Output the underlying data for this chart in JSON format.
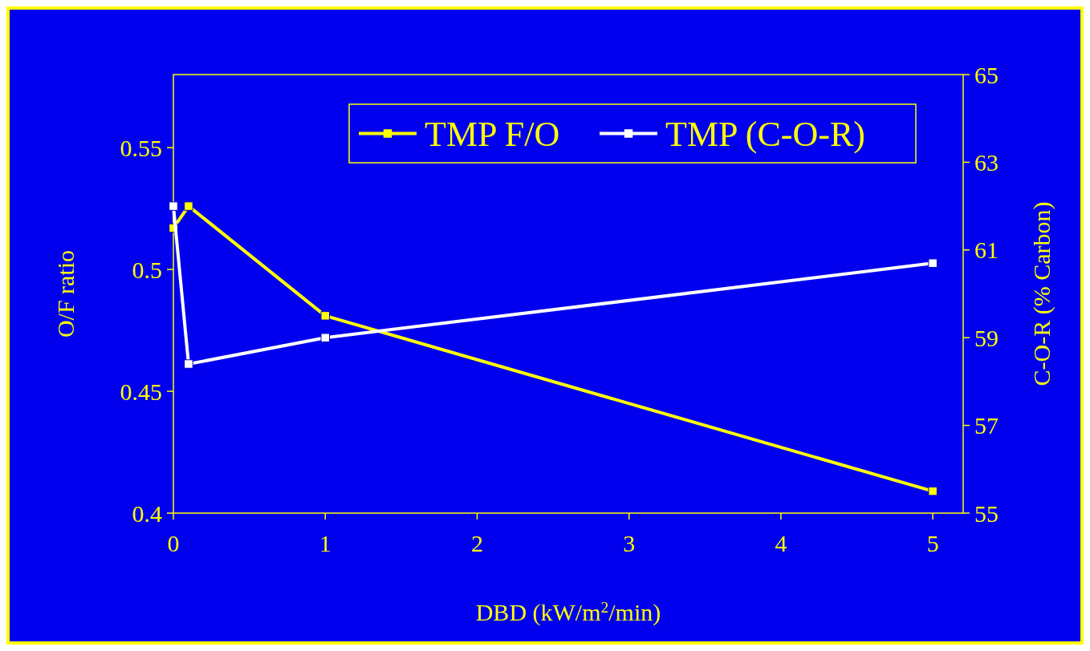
{
  "chart_data": {
    "type": "line",
    "xlabel": "DBD (kW/m$^{2}$/min)",
    "ylabel": "O/F ratio",
    "y2label": "C-O-R (% Carbon)",
    "x": [
      0,
      0.1,
      1,
      5
    ],
    "xlim": [
      0,
      5.2
    ],
    "xticks": [
      0,
      1,
      2,
      3,
      4,
      5
    ],
    "ylim": [
      0.4,
      0.58
    ],
    "yticks": [
      0.4,
      {
        "value": 0.45,
        "label": "0.45"
      },
      {
        "value": 0.5,
        "label": "0.5"
      },
      {
        "value": 0.55,
        "label": "0.55"
      }
    ],
    "y2lim": [
      55,
      65
    ],
    "y2ticks": [
      55,
      57,
      59,
      61,
      63,
      65
    ],
    "series": [
      {
        "name": "TMP F/O",
        "color": "#ffff00",
        "values": [
          0.517,
          0.526,
          0.481,
          0.409
        ]
      },
      {
        "name": "TMP (C-O-R)",
        "color": "#ffffff",
        "axis": "y2",
        "values": [
          62.0,
          58.4,
          59.0,
          60.7
        ]
      }
    ],
    "marker": "square",
    "legend": "top right",
    "grid": false
  }
}
